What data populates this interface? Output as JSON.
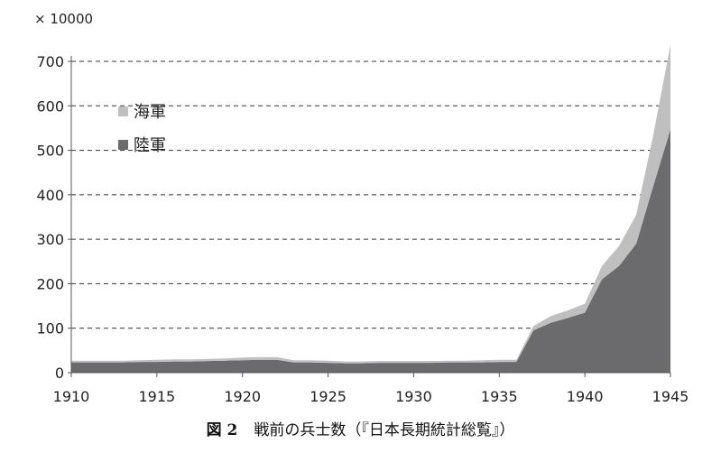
{
  "chart_data": {
    "type": "area",
    "stacked": true,
    "y_unit_label": "× 10000",
    "x": [
      1910,
      1911,
      1912,
      1913,
      1914,
      1915,
      1916,
      1917,
      1918,
      1919,
      1920,
      1921,
      1922,
      1923,
      1924,
      1925,
      1926,
      1927,
      1928,
      1929,
      1930,
      1931,
      1932,
      1933,
      1934,
      1935,
      1936,
      1937,
      1938,
      1939,
      1940,
      1941,
      1942,
      1943,
      1944,
      1945
    ],
    "series": [
      {
        "name": "陸軍",
        "color": "#6b6b6e",
        "values": [
          23,
          23,
          23,
          23,
          24,
          24,
          25,
          25,
          26,
          27,
          28,
          29,
          29,
          23,
          23,
          22,
          21,
          21,
          22,
          22,
          22,
          22,
          23,
          23,
          23,
          24,
          24,
          95,
          112,
          123,
          135,
          210,
          240,
          290,
          420,
          547
        ]
      },
      {
        "name": "海軍",
        "color": "#bfbfbf",
        "values": [
          4,
          4,
          4,
          4,
          4,
          5,
          5,
          5,
          5,
          5,
          6,
          6,
          6,
          5,
          5,
          5,
          4,
          4,
          4,
          4,
          4,
          4,
          4,
          4,
          5,
          5,
          5,
          10,
          15,
          17,
          20,
          30,
          45,
          65,
          115,
          190
        ]
      }
    ],
    "xlim": [
      1910,
      1945
    ],
    "ylim": [
      0,
      700
    ],
    "x_ticks": [
      1910,
      1915,
      1920,
      1925,
      1930,
      1935,
      1940,
      1945
    ],
    "y_ticks": [
      0,
      100,
      200,
      300,
      400,
      500,
      600,
      700
    ],
    "grid": "horizontal dashed",
    "legend_position": "top-left",
    "caption_number": "図 2",
    "caption_text": "戦前の兵士数（『日本長期統計総覧』）"
  }
}
